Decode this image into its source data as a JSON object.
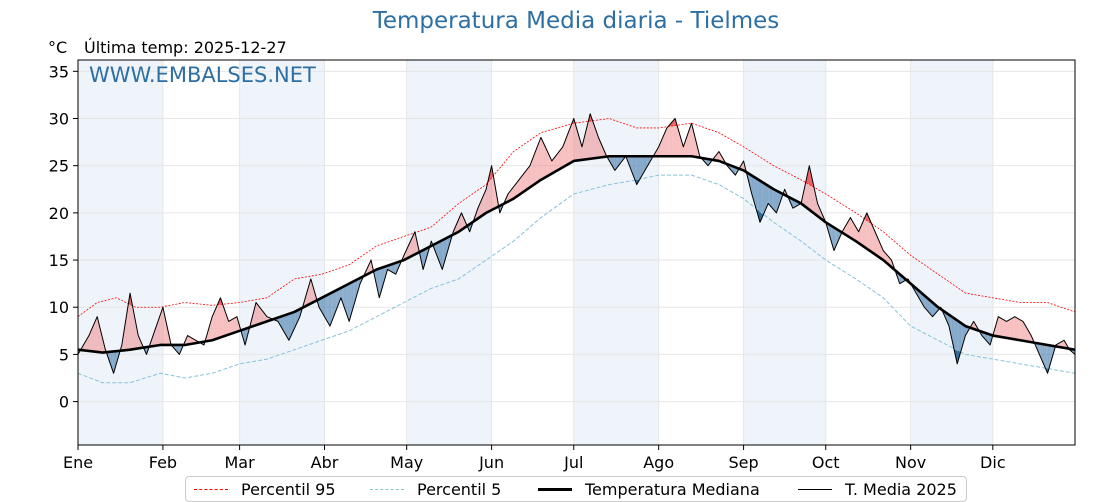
{
  "chart_data": {
    "type": "line",
    "title": "Temperatura Media diaria - Tielmes",
    "unit": "°C",
    "subtitle": "Última temp: 2025-12-27",
    "watermark": "WWW.EMBALSES.NET",
    "xlabels": [
      "Ene",
      "Feb",
      "Mar",
      "Abr",
      "May",
      "Jun",
      "Jul",
      "Ago",
      "Sep",
      "Oct",
      "Nov",
      "Dic"
    ],
    "month_start_day": [
      1,
      32,
      60,
      91,
      121,
      152,
      182,
      213,
      244,
      274,
      305,
      335
    ],
    "ylim": [
      -4.6,
      36.2
    ],
    "yticks": [
      0,
      5,
      10,
      15,
      20,
      25,
      30,
      35
    ],
    "xlim": [
      1,
      365
    ],
    "grid": true,
    "legend_placement": "bottom",
    "colors": {
      "p95": "#ff0000",
      "p5": "#88c3d8",
      "median": "#000000",
      "year": "#000000",
      "above_fill": "#f08080",
      "below_fill": "#4a7fb0",
      "band_bg": "#eef4fa",
      "title": "#2e6fa3"
    },
    "series": [
      {
        "name": "Percentil 95",
        "points": [
          [
            1,
            9
          ],
          [
            8,
            10.5
          ],
          [
            15,
            11
          ],
          [
            22,
            10
          ],
          [
            31,
            10
          ],
          [
            40,
            10.5
          ],
          [
            50,
            10.2
          ],
          [
            60,
            10.5
          ],
          [
            70,
            11
          ],
          [
            80,
            13
          ],
          [
            90,
            13.5
          ],
          [
            100,
            14.5
          ],
          [
            110,
            16.5
          ],
          [
            120,
            17.5
          ],
          [
            130,
            18.5
          ],
          [
            140,
            21
          ],
          [
            150,
            23
          ],
          [
            160,
            26.5
          ],
          [
            170,
            28.5
          ],
          [
            182,
            29.5
          ],
          [
            195,
            30
          ],
          [
            205,
            29
          ],
          [
            213,
            29
          ],
          [
            225,
            29.5
          ],
          [
            235,
            28.5
          ],
          [
            244,
            27
          ],
          [
            255,
            25
          ],
          [
            265,
            23.5
          ],
          [
            274,
            22
          ],
          [
            285,
            20
          ],
          [
            295,
            18
          ],
          [
            305,
            15.5
          ],
          [
            315,
            13.5
          ],
          [
            325,
            11.5
          ],
          [
            335,
            11
          ],
          [
            345,
            10.5
          ],
          [
            355,
            10.5
          ],
          [
            365,
            9.5
          ]
        ]
      },
      {
        "name": "Percentil 5",
        "points": [
          [
            1,
            3
          ],
          [
            10,
            2
          ],
          [
            20,
            2
          ],
          [
            31,
            3
          ],
          [
            40,
            2.5
          ],
          [
            50,
            3
          ],
          [
            60,
            4
          ],
          [
            70,
            4.5
          ],
          [
            80,
            5.5
          ],
          [
            90,
            6.5
          ],
          [
            100,
            7.5
          ],
          [
            110,
            9
          ],
          [
            120,
            10.5
          ],
          [
            130,
            12
          ],
          [
            140,
            13
          ],
          [
            150,
            15
          ],
          [
            160,
            17
          ],
          [
            170,
            19.5
          ],
          [
            182,
            22
          ],
          [
            195,
            23
          ],
          [
            205,
            23.5
          ],
          [
            213,
            24
          ],
          [
            225,
            24
          ],
          [
            235,
            23
          ],
          [
            244,
            21.5
          ],
          [
            255,
            19
          ],
          [
            265,
            17
          ],
          [
            274,
            15
          ],
          [
            285,
            13
          ],
          [
            295,
            11
          ],
          [
            305,
            8
          ],
          [
            315,
            6.5
          ],
          [
            325,
            5
          ],
          [
            335,
            4.5
          ],
          [
            345,
            4
          ],
          [
            355,
            3.5
          ],
          [
            365,
            3
          ]
        ]
      },
      {
        "name": "Temperatura Mediana",
        "points": [
          [
            1,
            5.5
          ],
          [
            10,
            5.2
          ],
          [
            20,
            5.5
          ],
          [
            31,
            6
          ],
          [
            40,
            6
          ],
          [
            50,
            6.5
          ],
          [
            60,
            7.5
          ],
          [
            70,
            8.5
          ],
          [
            80,
            9.5
          ],
          [
            90,
            11
          ],
          [
            100,
            12.5
          ],
          [
            110,
            14
          ],
          [
            120,
            15
          ],
          [
            130,
            16.5
          ],
          [
            140,
            18
          ],
          [
            150,
            20
          ],
          [
            160,
            21.5
          ],
          [
            170,
            23.5
          ],
          [
            182,
            25.5
          ],
          [
            195,
            26
          ],
          [
            205,
            26
          ],
          [
            213,
            26
          ],
          [
            225,
            26
          ],
          [
            235,
            25.5
          ],
          [
            244,
            24.5
          ],
          [
            255,
            22.5
          ],
          [
            265,
            21
          ],
          [
            274,
            19
          ],
          [
            285,
            17
          ],
          [
            295,
            15
          ],
          [
            305,
            12.5
          ],
          [
            315,
            10
          ],
          [
            325,
            8
          ],
          [
            335,
            7
          ],
          [
            345,
            6.5
          ],
          [
            355,
            6
          ],
          [
            365,
            5.5
          ]
        ]
      },
      {
        "name": "T. Media 2025",
        "points": [
          [
            1,
            5
          ],
          [
            5,
            7
          ],
          [
            8,
            9
          ],
          [
            11,
            5.5
          ],
          [
            14,
            3
          ],
          [
            17,
            6
          ],
          [
            20,
            11.5
          ],
          [
            23,
            7
          ],
          [
            26,
            5
          ],
          [
            29,
            7.5
          ],
          [
            32,
            10
          ],
          [
            35,
            6
          ],
          [
            38,
            5
          ],
          [
            41,
            7
          ],
          [
            44,
            6.5
          ],
          [
            47,
            6
          ],
          [
            50,
            9
          ],
          [
            53,
            11
          ],
          [
            56,
            8.5
          ],
          [
            59,
            9
          ],
          [
            62,
            6
          ],
          [
            66,
            10.5
          ],
          [
            70,
            9
          ],
          [
            74,
            8.5
          ],
          [
            78,
            6.5
          ],
          [
            82,
            9
          ],
          [
            86,
            13
          ],
          [
            89,
            10
          ],
          [
            93,
            8
          ],
          [
            97,
            11
          ],
          [
            100,
            8.5
          ],
          [
            104,
            12.5
          ],
          [
            108,
            15
          ],
          [
            111,
            11
          ],
          [
            114,
            14
          ],
          [
            117,
            13.5
          ],
          [
            120,
            15.5
          ],
          [
            124,
            18
          ],
          [
            127,
            14
          ],
          [
            130,
            17
          ],
          [
            134,
            14
          ],
          [
            138,
            18
          ],
          [
            141,
            20
          ],
          [
            144,
            18
          ],
          [
            147,
            20.5
          ],
          [
            150,
            22.5
          ],
          [
            152,
            25
          ],
          [
            155,
            20
          ],
          [
            158,
            22
          ],
          [
            162,
            23.5
          ],
          [
            166,
            25
          ],
          [
            170,
            28
          ],
          [
            174,
            25.5
          ],
          [
            178,
            27
          ],
          [
            182,
            30
          ],
          [
            185,
            27
          ],
          [
            188,
            30.5
          ],
          [
            191,
            28
          ],
          [
            194,
            26
          ],
          [
            197,
            24.5
          ],
          [
            201,
            26
          ],
          [
            205,
            23
          ],
          [
            209,
            25
          ],
          [
            213,
            27
          ],
          [
            216,
            29
          ],
          [
            219,
            30
          ],
          [
            222,
            27
          ],
          [
            225,
            29.5
          ],
          [
            228,
            26
          ],
          [
            231,
            25
          ],
          [
            235,
            26.5
          ],
          [
            238,
            25
          ],
          [
            241,
            24
          ],
          [
            244,
            25.5
          ],
          [
            247,
            22
          ],
          [
            250,
            19
          ],
          [
            253,
            21
          ],
          [
            256,
            20
          ],
          [
            259,
            22.5
          ],
          [
            262,
            20.5
          ],
          [
            265,
            21
          ],
          [
            268,
            25
          ],
          [
            271,
            21
          ],
          [
            274,
            19
          ],
          [
            277,
            16
          ],
          [
            280,
            18
          ],
          [
            283,
            19.5
          ],
          [
            286,
            18
          ],
          [
            289,
            20
          ],
          [
            292,
            18
          ],
          [
            295,
            16
          ],
          [
            298,
            15
          ],
          [
            301,
            12.5
          ],
          [
            304,
            13
          ],
          [
            307,
            11.5
          ],
          [
            310,
            10
          ],
          [
            313,
            9
          ],
          [
            316,
            10
          ],
          [
            319,
            8
          ],
          [
            322,
            4
          ],
          [
            325,
            7
          ],
          [
            328,
            8.5
          ],
          [
            331,
            7
          ],
          [
            334,
            6
          ],
          [
            337,
            9
          ],
          [
            340,
            8.5
          ],
          [
            343,
            9
          ],
          [
            346,
            8.5
          ],
          [
            349,
            7
          ],
          [
            352,
            5
          ],
          [
            355,
            3
          ],
          [
            358,
            6
          ],
          [
            361,
            6.5
          ],
          [
            363,
            5.5
          ],
          [
            365,
            5
          ]
        ]
      }
    ]
  },
  "legend": {
    "p95": "Percentil 95",
    "p5": "Percentil 5",
    "median": "Temperatura Mediana",
    "year": "T. Media 2025"
  }
}
